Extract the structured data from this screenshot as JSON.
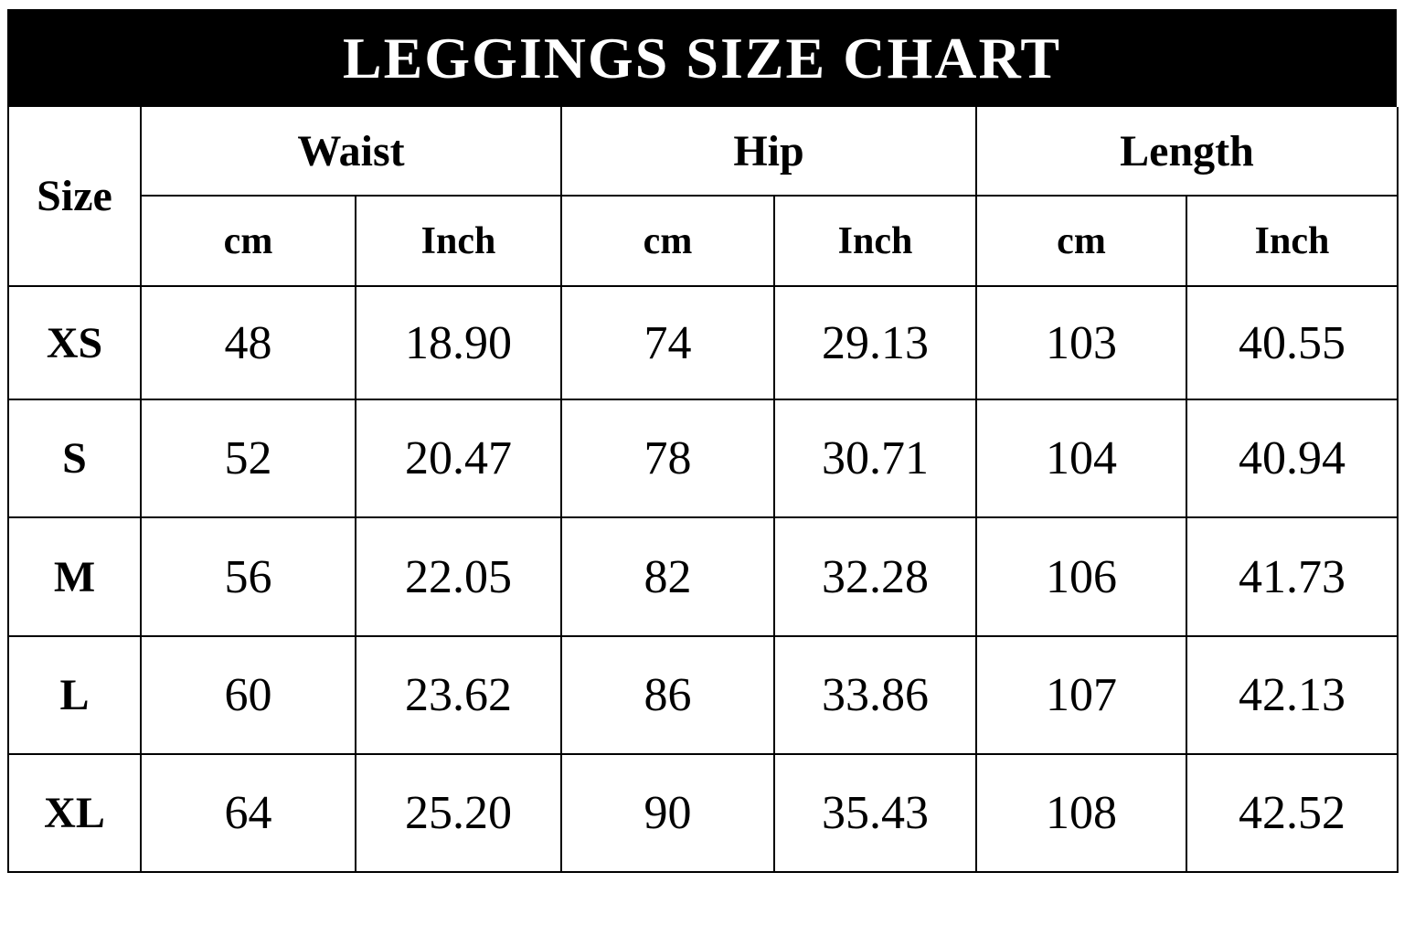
{
  "header": {
    "title": "LEGGINGS SIZE CHART"
  },
  "table": {
    "size_label": "Size",
    "groups": [
      "Waist",
      "Hip",
      "Length"
    ],
    "units": [
      "cm",
      "Inch",
      "cm",
      "Inch",
      "cm",
      "Inch"
    ],
    "rows": [
      [
        "XS",
        "48",
        "18.90",
        "74",
        "29.13",
        "103",
        "40.55"
      ],
      [
        "S",
        "52",
        "20.47",
        "78",
        "30.71",
        "104",
        "40.94"
      ],
      [
        "M",
        "56",
        "22.05",
        "82",
        "32.28",
        "106",
        "41.73"
      ],
      [
        "L",
        "60",
        "23.62",
        "86",
        "33.86",
        "107",
        "42.13"
      ],
      [
        "XL",
        "64",
        "25.20",
        "90",
        "35.43",
        "108",
        "42.52"
      ]
    ]
  }
}
